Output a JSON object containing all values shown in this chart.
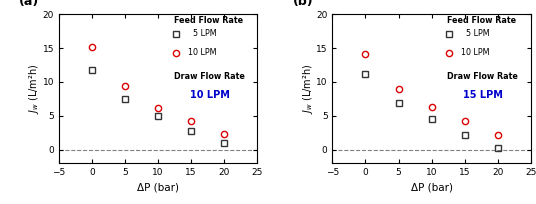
{
  "panel_a": {
    "label": "(a)",
    "draw_rate_label": "10 LPM",
    "series_5lpm": {
      "x": [
        0,
        5,
        10,
        15,
        20
      ],
      "y": [
        11.8,
        7.5,
        5.0,
        2.8,
        1.0
      ]
    },
    "series_10lpm": {
      "x": [
        0,
        5,
        10,
        15,
        20
      ],
      "y": [
        15.1,
        9.4,
        6.2,
        4.2,
        2.3
      ]
    }
  },
  "panel_b": {
    "label": "(b)",
    "draw_rate_label": "15 LPM",
    "series_5lpm": {
      "x": [
        0,
        5,
        10,
        15,
        20
      ],
      "y": [
        11.2,
        6.9,
        4.5,
        2.2,
        0.2
      ]
    },
    "series_10lpm": {
      "x": [
        0,
        5,
        10,
        15,
        20
      ],
      "y": [
        14.2,
        9.0,
        6.3,
        4.3,
        2.2
      ]
    }
  },
  "xlim": [
    -5,
    25
  ],
  "ylim": [
    -2,
    20
  ],
  "xticks": [
    -5,
    0,
    5,
    10,
    15,
    20,
    25
  ],
  "yticks": [
    0,
    5,
    10,
    15,
    20
  ],
  "xlabel": "ΔP (bar)",
  "ylabel": "$J_w$ (L/m²h)",
  "color_5lpm": "#333333",
  "color_10lpm": "#dd0000",
  "legend_title_feed": "Feed Flow Rate",
  "legend_5lpm": "  5 LPM",
  "legend_10lpm": "10 LPM",
  "legend_draw": "Draw Flow Rate",
  "draw_color": "#0000cc",
  "marker_5lpm": "s",
  "marker_10lpm": "o",
  "markersize": 4.5,
  "dashed_y": 0
}
